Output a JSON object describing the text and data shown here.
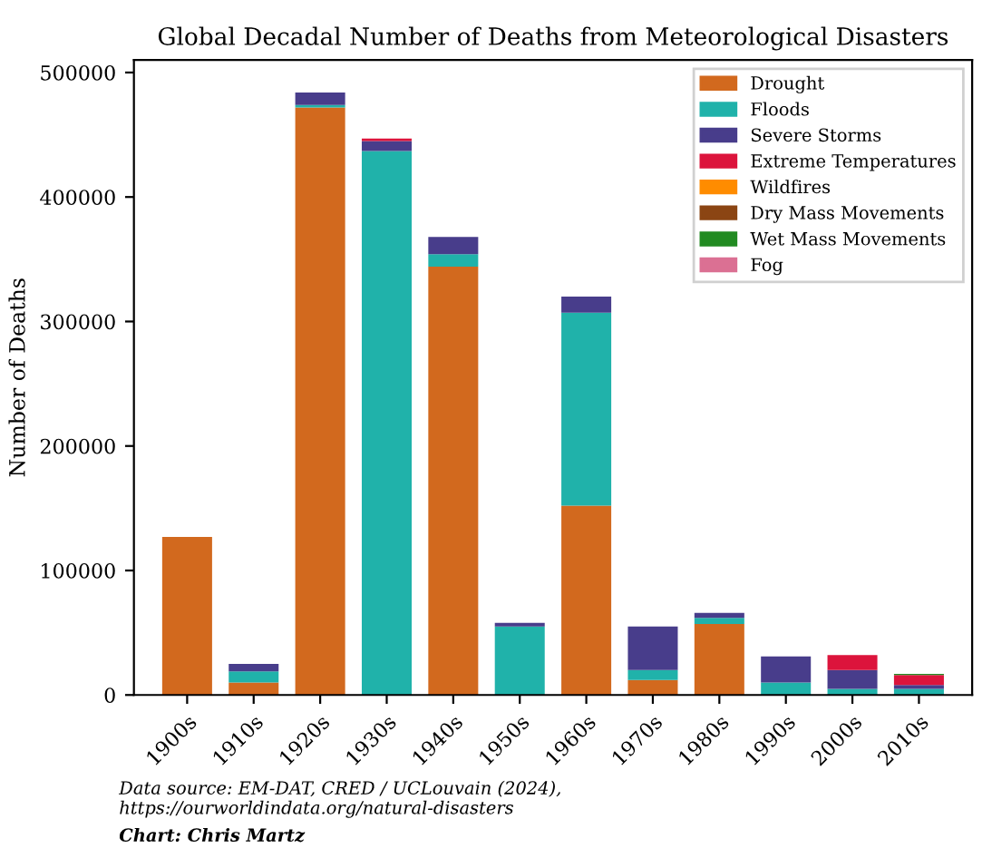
{
  "chart_data": {
    "type": "bar",
    "stacked": true,
    "title": "Global Decadal Number of Deaths from Meteorological Disasters",
    "ylabel": "Number of Deaths",
    "categories": [
      "1900s",
      "1910s",
      "1920s",
      "1930s",
      "1940s",
      "1950s",
      "1960s",
      "1970s",
      "1980s",
      "1990s",
      "2000s",
      "2010s"
    ],
    "series": [
      {
        "name": "Drought",
        "color": "#d2691e",
        "values": [
          127000,
          10000,
          472000,
          0,
          344000,
          0,
          152000,
          12000,
          57000,
          0,
          0,
          0
        ]
      },
      {
        "name": "Floods",
        "color": "#20b2aa",
        "values": [
          0,
          9000,
          2000,
          437000,
          10000,
          55000,
          155000,
          8000,
          5000,
          10000,
          5000,
          5000
        ]
      },
      {
        "name": "Severe Storms",
        "color": "#483d8b",
        "values": [
          0,
          6000,
          10000,
          8000,
          14000,
          3000,
          13000,
          35000,
          4000,
          21000,
          15000,
          3000
        ]
      },
      {
        "name": "Extreme Temperatures",
        "color": "#dc143c",
        "values": [
          0,
          0,
          0,
          2000,
          0,
          0,
          0,
          0,
          0,
          0,
          12000,
          8000
        ]
      },
      {
        "name": "Wildfires",
        "color": "#ff8c00",
        "values": [
          0,
          0,
          0,
          0,
          0,
          0,
          0,
          0,
          0,
          0,
          0,
          0
        ]
      },
      {
        "name": "Dry Mass Movements",
        "color": "#8b4513",
        "values": [
          0,
          0,
          0,
          0,
          0,
          0,
          0,
          0,
          0,
          0,
          0,
          0
        ]
      },
      {
        "name": "Wet Mass Movements",
        "color": "#228b22",
        "values": [
          0,
          0,
          0,
          0,
          0,
          0,
          0,
          0,
          0,
          0,
          0,
          1000
        ]
      },
      {
        "name": "Fog",
        "color": "#db7093",
        "values": [
          0,
          0,
          0,
          0,
          0,
          0,
          0,
          0,
          0,
          0,
          0,
          0
        ]
      }
    ],
    "ylim": [
      0,
      510000
    ],
    "yticks": [
      0,
      100000,
      200000,
      300000,
      400000,
      500000
    ],
    "grid": false,
    "legend": "top right",
    "annotations": [
      "Data source: EM-DAT, CRED / UCLouvain (2024),\nhttps://ourworldindata.org/natural-disasters",
      "Chart: Chris Martz"
    ]
  }
}
